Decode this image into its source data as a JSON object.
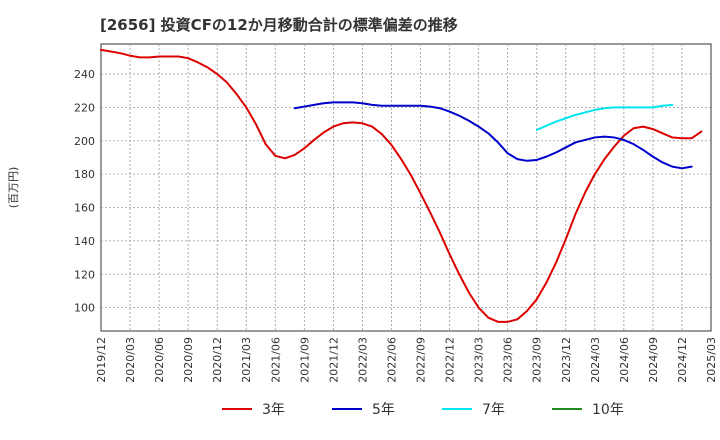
{
  "chart_data": {
    "type": "line",
    "title": "[2656]  投資CFの12か月移動合計の標準偏差の推移",
    "ylabel": "(百万円)",
    "xlabel": "",
    "ylim": [
      86,
      258
    ],
    "yticks": [
      100,
      120,
      140,
      160,
      180,
      200,
      220,
      240
    ],
    "x_tick_labels": [
      "2019/12",
      "2020/03",
      "2020/06",
      "2020/09",
      "2020/12",
      "2021/03",
      "2021/06",
      "2021/09",
      "2021/12",
      "2022/03",
      "2022/06",
      "2022/09",
      "2022/12",
      "2023/03",
      "2023/06",
      "2023/09",
      "2023/12",
      "2024/03",
      "2024/06",
      "2024/09",
      "2024/12",
      "2025/03"
    ],
    "grid": true,
    "legend_position": "bottom",
    "series": [
      {
        "name": "3年",
        "color": "#dd0000",
        "start_month": 0,
        "values": [
          254.5,
          253.5,
          252.5,
          251,
          250,
          250,
          250.5,
          250.5,
          250.5,
          249.5,
          247,
          244,
          240,
          235,
          228,
          220,
          210,
          198,
          191,
          189.5,
          191.5,
          195.5,
          200.5,
          205,
          208.5,
          210.5,
          211,
          210.5,
          208.5,
          204,
          197.5,
          189,
          179.5,
          168.5,
          157,
          145,
          132,
          120,
          109,
          100,
          94,
          91.5,
          91.5,
          93,
          98,
          105,
          115,
          127,
          141,
          156,
          169,
          180,
          189,
          196.5,
          203,
          207.5,
          208.5,
          207,
          204.5,
          202,
          201.5,
          201.5,
          205.5
        ]
      },
      {
        "name": "5年",
        "color": "#0000cc",
        "start_month": 20,
        "values": [
          219.5,
          220.5,
          221.5,
          222.5,
          223,
          223,
          223,
          222.5,
          221.5,
          221,
          221,
          221,
          221,
          221,
          220.5,
          219.5,
          217.5,
          215,
          212,
          208.5,
          204.5,
          199,
          192.5,
          189,
          188,
          188.5,
          190.5,
          193,
          196,
          199,
          200.5,
          202,
          202.5,
          202,
          200.5,
          198,
          194.5,
          190.5,
          187,
          184.5,
          183.5,
          184.5
        ]
      },
      {
        "name": "7年",
        "color": "#00e5ee",
        "start_month": 45,
        "values": [
          206.5,
          209,
          211.5,
          213.5,
          215.5,
          217,
          218.5,
          219.5,
          220,
          220,
          220,
          220,
          220,
          221,
          221.5
        ]
      },
      {
        "name": "10年",
        "color": "#228b22",
        "start_month": 0,
        "values": []
      }
    ]
  }
}
